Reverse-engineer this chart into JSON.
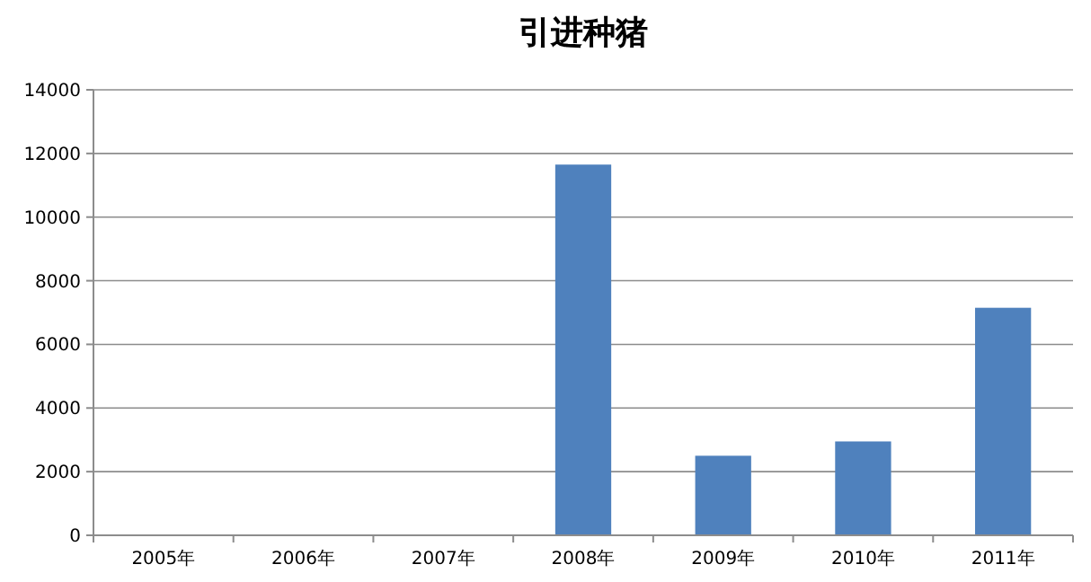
{
  "chart_data": {
    "type": "bar",
    "title": "引进种猪",
    "categories": [
      "2005年",
      "2006年",
      "2007年",
      "2008年",
      "2009年",
      "2010年",
      "2011年"
    ],
    "values": [
      0,
      0,
      0,
      11650,
      2500,
      2950,
      7150
    ],
    "color": "#4f81bd",
    "ylim": [
      0,
      14000
    ],
    "yticks": [
      0,
      2000,
      4000,
      6000,
      8000,
      10000,
      12000,
      14000
    ],
    "grid": "y"
  }
}
